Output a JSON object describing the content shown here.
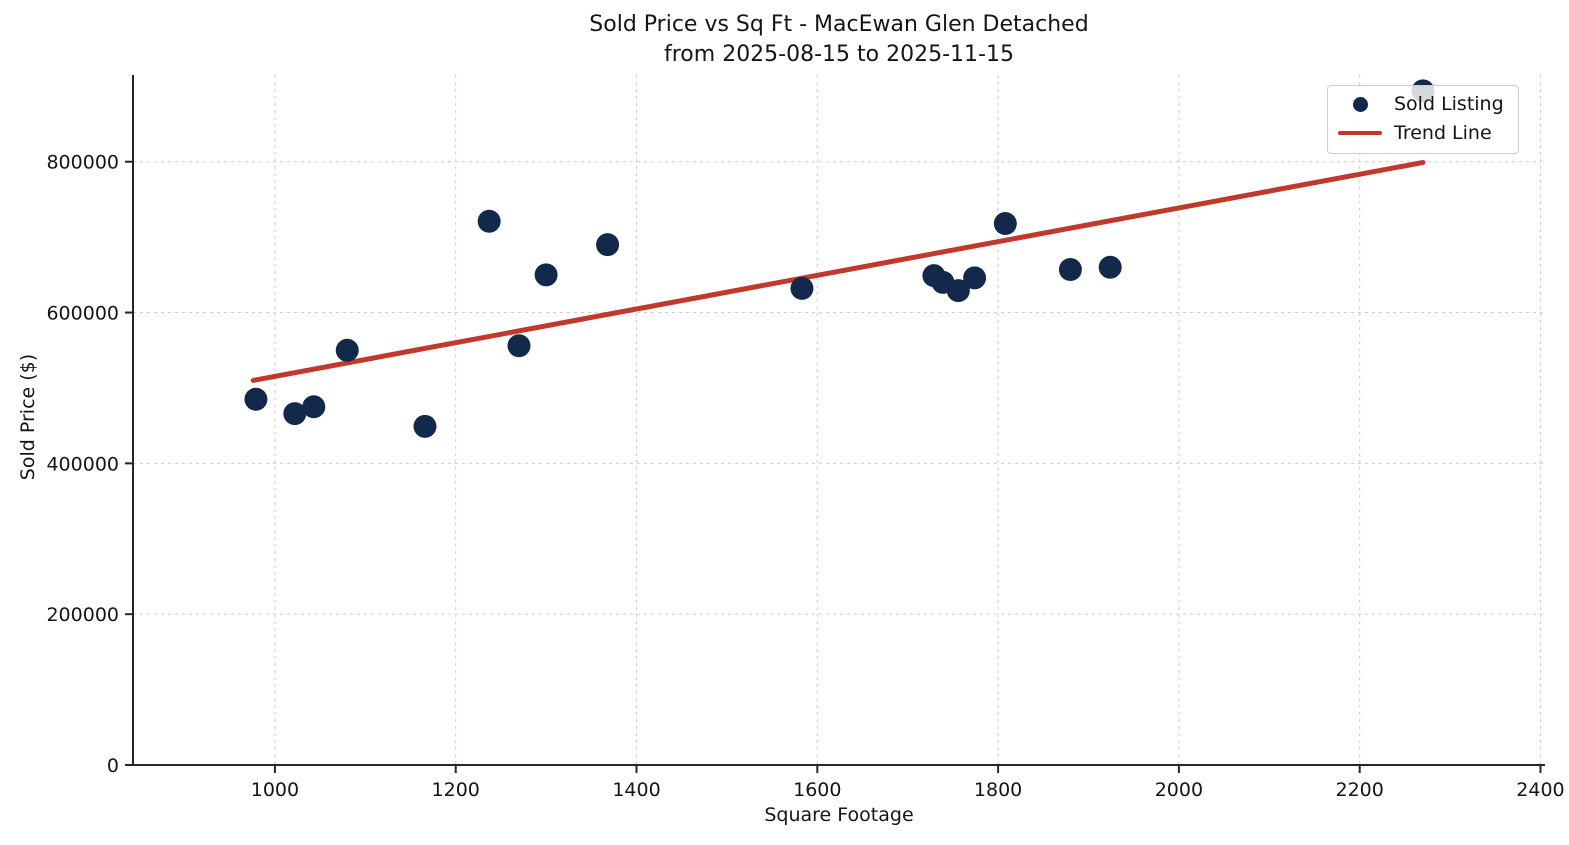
{
  "chart_data": {
    "type": "scatter",
    "title": "Sold Price vs Sq Ft - MacEwan Glen Detached",
    "subtitle": "from 2025-08-15 to 2025-11-15",
    "xlabel": "Square Footage",
    "ylabel": "Sold Price ($)",
    "xlim": [
      843,
      2405
    ],
    "ylim": [
      0,
      915000
    ],
    "x_ticks": [
      1000,
      1200,
      1400,
      1600,
      1800,
      2000,
      2200,
      2400
    ],
    "y_ticks": [
      0,
      200000,
      400000,
      600000,
      800000
    ],
    "grid": true,
    "legend_position": "upper right",
    "colors": {
      "point": "#13294b",
      "trend": "#c0392b",
      "grid": "#cccccc",
      "spine": "#262626",
      "text": "#151515"
    },
    "series": [
      {
        "name": "Sold Listing",
        "kind": "scatter",
        "points": [
          [
            979,
            485000
          ],
          [
            1022,
            466000
          ],
          [
            1043,
            475000
          ],
          [
            1080,
            550000
          ],
          [
            1166,
            449000
          ],
          [
            1237,
            721000
          ],
          [
            1270,
            556000
          ],
          [
            1300,
            650000
          ],
          [
            1368,
            690000
          ],
          [
            1583,
            632000
          ],
          [
            1729,
            649000
          ],
          [
            1739,
            640000
          ],
          [
            1756,
            629000
          ],
          [
            1774,
            646000
          ],
          [
            1808,
            718000
          ],
          [
            1880,
            657000
          ],
          [
            1924,
            660000
          ],
          [
            2270,
            894000
          ]
        ]
      },
      {
        "name": "Trend Line",
        "kind": "line",
        "points": [
          [
            976,
            510000
          ],
          [
            2270,
            799000
          ]
        ]
      }
    ]
  },
  "legend": {
    "items": [
      {
        "label": "Sold Listing"
      },
      {
        "label": "Trend Line"
      }
    ]
  }
}
